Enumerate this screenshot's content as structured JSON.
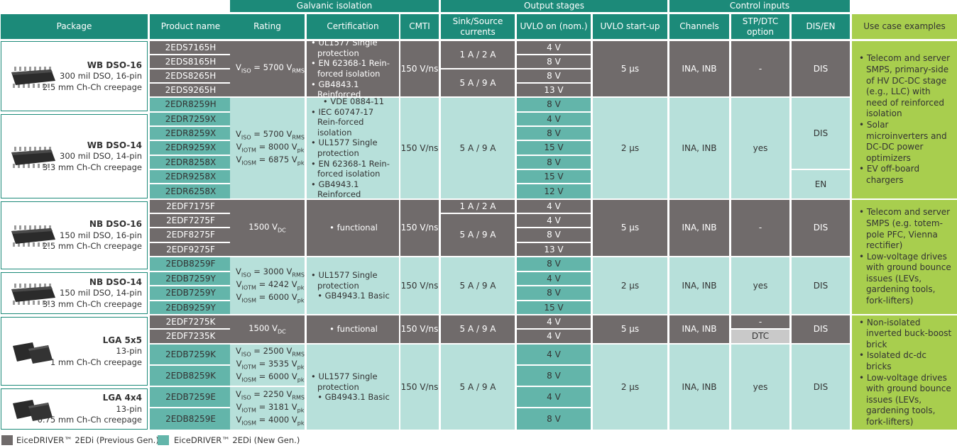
{
  "groups": {
    "galvanic": "Galvanic isolation",
    "output": "Output stages",
    "control": "Control inputs"
  },
  "headers": {
    "package": "Package",
    "product": "Product name",
    "rating": "Rating",
    "certification": "Certification",
    "cmti": "CMTI",
    "sink": "Sink/Source currents",
    "uvlo_on": "UVLO on (nom.)",
    "uvlo_startup": "UVLO start-up",
    "channels": "Channels",
    "stp": "STP/DTC option",
    "disen": "DIS/EN",
    "usecase": "Use case examples"
  },
  "packages": [
    {
      "name": "WB DSO-16",
      "line1": "300 mil DSO, 16-pin",
      "line2": "2.5 mm Ch-Ch creepage",
      "chip_icon": "dso-chip-icon"
    },
    {
      "name": "WB DSO-14",
      "line1": "300 mil DSO, 14-pin",
      "line2": "3.3 mm Ch-Ch creepage",
      "chip_icon": "dso-chip-icon"
    },
    {
      "name": "NB DSO-16",
      "line1": "150 mil DSO, 16-pin",
      "line2": "2.5 mm Ch-Ch creepage",
      "chip_icon": "dso-chip-icon"
    },
    {
      "name": "NB DSO-14",
      "line1": "150 mil DSO, 14-pin",
      "line2": "3.3 mm Ch-Ch creepage",
      "chip_icon": "dso-chip-icon"
    },
    {
      "name": "LGA 5x5",
      "line1": "13-pin",
      "line2": "1 mm Ch-Ch creepage",
      "chip_icon": "lga-chip-icon"
    },
    {
      "name": "LGA 4x4",
      "line1": "13-pin",
      "line2": "0.75 mm Ch-Ch creepage",
      "chip_icon": "lga-chip-icon"
    }
  ],
  "products": [
    "2EDS7165H",
    "2EDS8165H",
    "2EDS8265H",
    "2EDS9265H",
    "2EDR8259H",
    "2EDR7259X",
    "2EDR8259X",
    "2EDR9259X",
    "2EDR8258X",
    "2EDR9258X",
    "2EDR6258X",
    "2EDF7175F",
    "2EDF7275F",
    "2EDF8275F",
    "2EDF9275F",
    "2EDB8259F",
    "2EDB7259Y",
    "2EDB7259Y",
    "2EDB9259Y",
    "2EDF7275K",
    "2EDF7235K",
    "2EDB7259K",
    "2EDB8259K",
    "2EDB7259E",
    "2EDB8259E"
  ],
  "uvlo_on": [
    "4 V",
    "8 V",
    "8 V",
    "13 V",
    "8 V",
    "4 V",
    "8 V",
    "15 V",
    "8 V",
    "15 V",
    "12 V",
    "4 V",
    "4 V",
    "8 V",
    "13 V",
    "8 V",
    "4 V",
    "8 V",
    "15 V",
    "4 V",
    "4 V",
    "4 V",
    "8 V",
    "4 V",
    "8 V"
  ],
  "ratings": [
    {
      "lines": [
        {
          "v": "V",
          "sub": "ISO",
          "rest": " = 5700 V",
          "sub2": "RMS"
        }
      ]
    },
    {
      "lines": [
        {
          "v": "V",
          "sub": "ISO",
          "rest": " = 5700 V",
          "sub2": "RMS"
        },
        {
          "v": "V",
          "sub": "IOTM",
          "rest": " = 8000 V",
          "sub2": "pk"
        },
        {
          "v": "V",
          "sub": "IOSM",
          "rest": " = 6875 V",
          "sub2": "pk"
        }
      ]
    },
    {
      "lines": [
        {
          "v": "1500 V",
          "sub": "DC",
          "rest": "",
          "sub2": ""
        }
      ]
    },
    {
      "lines": [
        {
          "v": "V",
          "sub": "ISO",
          "rest": " = 3000 V",
          "sub2": "RMS"
        },
        {
          "v": "V",
          "sub": "IOTM",
          "rest": " = 4242 V",
          "sub2": "pk"
        },
        {
          "v": "V",
          "sub": "IOSM",
          "rest": " = 6000 V",
          "sub2": "pk"
        }
      ]
    },
    {
      "lines": [
        {
          "v": "1500 V",
          "sub": "DC",
          "rest": "",
          "sub2": ""
        }
      ]
    },
    {
      "lines": [
        {
          "v": "V",
          "sub": "ISO",
          "rest": " = 2500 V",
          "sub2": "RMS"
        },
        {
          "v": "V",
          "sub": "IOTM",
          "rest": " = 3535 V",
          "sub2": "pk"
        },
        {
          "v": "V",
          "sub": "IOSM",
          "rest": " = 6000 V",
          "sub2": "pk"
        }
      ]
    },
    {
      "lines": [
        {
          "v": "V",
          "sub": "ISO",
          "rest": " = 2250 V",
          "sub2": "RMS"
        },
        {
          "v": "V",
          "sub": "IOTM",
          "rest": " = 3181 V",
          "sub2": "pk"
        },
        {
          "v": "V",
          "sub": "IOSM",
          "rest": " = 4000 V",
          "sub2": "pk"
        }
      ]
    }
  ],
  "certifications": [
    [
      "UL1577 Single protection",
      "EN 62368-1 Rein-forced isolation",
      "GB4843.1 Reinforced"
    ],
    [
      "VDE 0884-11",
      "IEC 60747-17 Rein-forced isolation",
      "UL1577 Single protection",
      "EN 62368-1 Rein-forced isolation",
      "GB4943.1 Reinforced"
    ],
    [
      "functional"
    ],
    [
      "UL1577 Single protection",
      "GB4943.1 Basic"
    ],
    [
      "functional"
    ],
    [
      "UL1577 Single protection",
      "GB4943.1 Basic"
    ]
  ],
  "cmti": "150 V/ns",
  "sink": {
    "a": "1 A / 2 A",
    "b": "5 A / 9 A"
  },
  "uvlo_startup": {
    "five": "5 µs",
    "two": "2 µs"
  },
  "channels": "INA, INB",
  "stp": {
    "dash": "-",
    "yes": "yes",
    "dtc": "DTC"
  },
  "disen": {
    "dis": "DIS",
    "en": "EN"
  },
  "usecases": [
    [
      "Telecom and server SMPS, primary-side of HV DC-DC stage (e.g., LLC) with need of reinforced isolation",
      "Solar microinverters and DC-DC power optimizers",
      "EV off-board chargers"
    ],
    [
      "Telecom and server SMPS (e.g. totem-pole PFC, Vienna rectifier)",
      "Low-voltage drives with ground bounce issues (LEVs, gardening tools, fork-lifters)"
    ],
    [
      "Non-isolated inverted buck-boost brick",
      "Isolated dc-dc bricks",
      "Low-voltage drives with ground bounce issues (LEVs, gardening tools, fork-lifters)"
    ]
  ],
  "legend": {
    "prev": "EiceDRIVER™ 2EDi (Previous Gen.)",
    "new": "EiceDRIVER™ 2EDi (New Gen.)"
  },
  "colors": {
    "prev_gen": "#706b6b",
    "new_gen": "#63b5aa",
    "header": "#1c8a79",
    "usecase": "#a8ce4e"
  }
}
